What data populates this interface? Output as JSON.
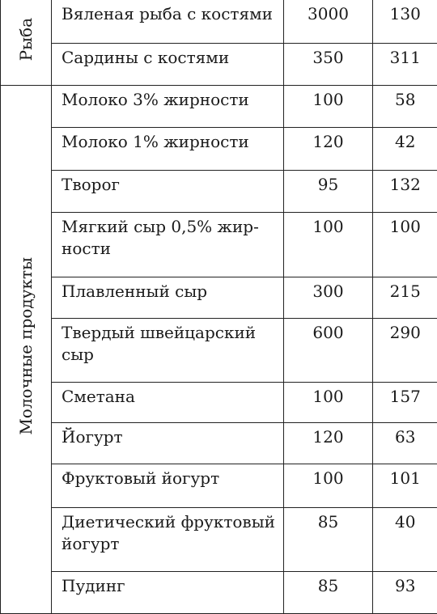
{
  "table": {
    "groups": [
      {
        "label": "Рыба",
        "rows": [
          {
            "name": "Вяленая рыба с костями",
            "col1": "3000",
            "col2": "130"
          },
          {
            "name": "Сардины с костями",
            "col1": "350",
            "col2": "311"
          }
        ]
      },
      {
        "label": "Молочные продукты",
        "rows": [
          {
            "name": "Молоко 3% жирности",
            "col1": "100",
            "col2": "58"
          },
          {
            "name": "Молоко 1% жирности",
            "col1": "120",
            "col2": "42"
          },
          {
            "name": "Творог",
            "col1": "95",
            "col2": "132"
          },
          {
            "name": "Мягкий сыр 0,5% жир-\nности",
            "col1": "100",
            "col2": "100"
          },
          {
            "name": "Плавленный сыр",
            "col1": "300",
            "col2": "215"
          },
          {
            "name": "Твердый швейцарский\nсыр",
            "col1": "600",
            "col2": "290"
          },
          {
            "name": "Сметана",
            "col1": "100",
            "col2": "157"
          },
          {
            "name": "Йогурт",
            "col1": "120",
            "col2": "63"
          },
          {
            "name": "Фруктовый йогурт",
            "col1": "100",
            "col2": "101"
          },
          {
            "name": "Диетический фруктовый\nйогурт",
            "col1": "85",
            "col2": "40"
          },
          {
            "name": "Пудинг",
            "col1": "85",
            "col2": "93"
          }
        ]
      }
    ]
  }
}
